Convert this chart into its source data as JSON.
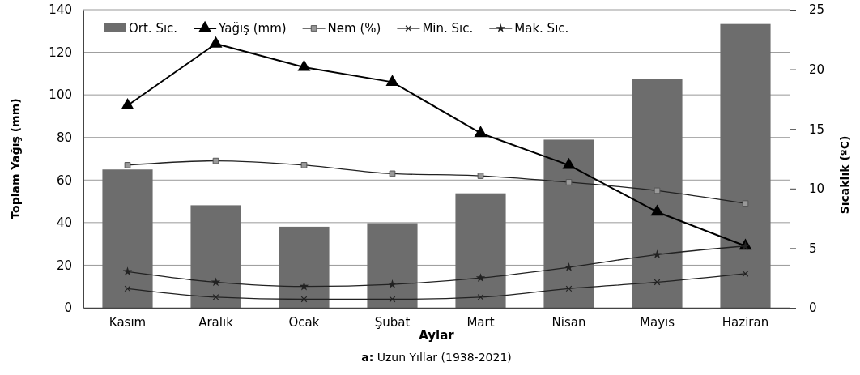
{
  "chart_data": {
    "type": "bar",
    "xlabel": "Aylar",
    "ylabel": "Toplam Yağış (mm)",
    "y2label": "Sıcaklık (ºC)",
    "categories": [
      "Kasım",
      "Aralık",
      "Ocak",
      "Şubat",
      "Mart",
      "Nisan",
      "Mayıs",
      "Haziran"
    ],
    "series": [
      {
        "name": "Ort. Sıc.",
        "axis": "y2",
        "color": "#6d6d6d",
        "values": [
          11.6,
          8.6,
          6.8,
          7.1,
          9.6,
          14.1,
          19.2,
          23.8
        ]
      },
      {
        "name": "Yağış (mm)",
        "type": "line",
        "color": "#000000",
        "marker": "triangle",
        "values": [
          95,
          124,
          113,
          106,
          82,
          67,
          45,
          29
        ]
      },
      {
        "name": "Nem (%)",
        "type": "line",
        "color": "#222222",
        "marker": "square",
        "values": [
          67,
          69,
          67,
          63,
          62,
          59,
          55,
          49
        ]
      },
      {
        "name": "Min. Sıc.",
        "type": "line",
        "color": "#222222",
        "marker": "cross",
        "values": [
          9,
          5,
          4,
          4,
          5,
          9,
          12,
          16
        ]
      },
      {
        "name": "Mak. Sıc.",
        "type": "line",
        "color": "#222222",
        "marker": "star",
        "values": [
          17,
          12,
          10,
          11,
          14,
          19,
          25,
          29
        ]
      }
    ],
    "ylim": [
      0,
      140
    ],
    "yticks": [
      0,
      20,
      40,
      60,
      80,
      100,
      120,
      140
    ],
    "y2lim": [
      0,
      25
    ],
    "y2ticks": [
      0,
      5,
      10,
      15,
      20,
      25
    ],
    "grid": "y",
    "legend": "top",
    "annotations": [
      "a: Uzun Yıllar (1938-2021)"
    ]
  }
}
